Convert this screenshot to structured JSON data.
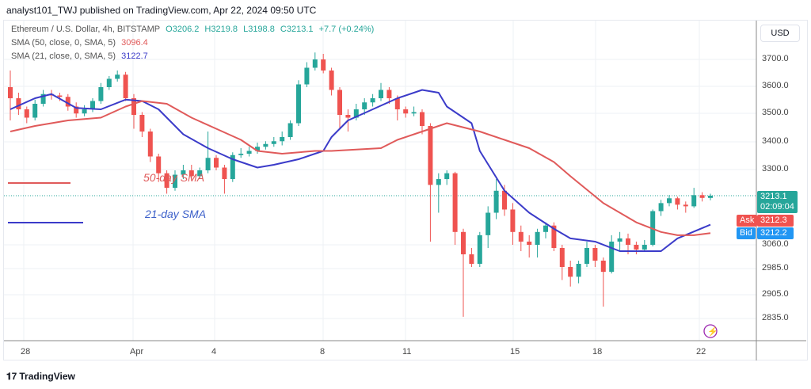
{
  "header": {
    "published": "analyst101_TWJ published on TradingView.com, Apr 22, 2024 09:50 UTC"
  },
  "legend": {
    "symbol": "Ethereum / U.S. Dollar, 4h, BITSTAMP",
    "open": "O3206.2",
    "high": "H3219.8",
    "low": "L3198.8",
    "close": "C3213.1",
    "change": "+7.7 (+0.24%)",
    "sma50_label": "SMA (50, close, 0, SMA, 5)",
    "sma50_value": "3096.4",
    "sma21_label": "SMA (21, close, 0, SMA, 5)",
    "sma21_value": "3122.7"
  },
  "currency": "USD",
  "price_labels": {
    "last": "3213.1",
    "countdown": "02:09:04",
    "ask_label": "Ask",
    "ask": "3212.3",
    "bid_label": "Bid",
    "bid": "3212.2"
  },
  "annotations": {
    "sma50": "50-day SMA",
    "sma21": "21-day SMA"
  },
  "logo": "TradingView",
  "colors": {
    "up": "#26a69a",
    "down": "#ef5350",
    "sma50": "#e05a5a",
    "sma21": "#3b3bc9",
    "ask": "#ef5350",
    "bid": "#2196f3",
    "last": "#26a69a",
    "alert": "#9c27b0"
  },
  "chart_data": {
    "type": "candlestick",
    "title": "Ethereum / U.S. Dollar, 4h, BITSTAMP",
    "y_ticks": [
      "3700.0",
      "3600.0",
      "3500.0",
      "3400.0",
      "3300.0",
      "3060.0",
      "2985.0",
      "2905.0",
      "2835.0"
    ],
    "x_ticks": [
      "28",
      "Apr",
      "4",
      "8",
      "11",
      "15",
      "18",
      "22"
    ],
    "grid": true,
    "candles_ohlc": [
      [
        3600,
        3660,
        3480,
        3560
      ],
      [
        3560,
        3580,
        3500,
        3520
      ],
      [
        3520,
        3530,
        3470,
        3490
      ],
      [
        3490,
        3555,
        3480,
        3540
      ],
      [
        3540,
        3590,
        3530,
        3575
      ],
      [
        3575,
        3590,
        3555,
        3570
      ],
      [
        3570,
        3580,
        3550,
        3565
      ],
      [
        3565,
        3575,
        3515,
        3530
      ],
      [
        3530,
        3545,
        3490,
        3505
      ],
      [
        3505,
        3535,
        3495,
        3520
      ],
      [
        3520,
        3560,
        3510,
        3550
      ],
      [
        3550,
        3615,
        3540,
        3600
      ],
      [
        3600,
        3640,
        3590,
        3630
      ],
      [
        3630,
        3660,
        3620,
        3645
      ],
      [
        3645,
        3655,
        3550,
        3560
      ],
      [
        3560,
        3575,
        3450,
        3500
      ],
      [
        3500,
        3510,
        3420,
        3440
      ],
      [
        3440,
        3450,
        3330,
        3350
      ],
      [
        3350,
        3360,
        3260,
        3290
      ],
      [
        3290,
        3300,
        3220,
        3240
      ],
      [
        3240,
        3300,
        3230,
        3285
      ],
      [
        3285,
        3320,
        3270,
        3300
      ],
      [
        3300,
        3320,
        3265,
        3280
      ],
      [
        3280,
        3310,
        3270,
        3300
      ],
      [
        3300,
        3440,
        3290,
        3345
      ],
      [
        3345,
        3355,
        3300,
        3310
      ],
      [
        3310,
        3320,
        3220,
        3270
      ],
      [
        3270,
        3365,
        3260,
        3355
      ],
      [
        3355,
        3380,
        3345,
        3360
      ],
      [
        3360,
        3385,
        3350,
        3370
      ],
      [
        3370,
        3400,
        3360,
        3385
      ],
      [
        3385,
        3405,
        3375,
        3395
      ],
      [
        3395,
        3420,
        3385,
        3405
      ],
      [
        3405,
        3440,
        3390,
        3420
      ],
      [
        3420,
        3480,
        3410,
        3470
      ],
      [
        3470,
        3625,
        3460,
        3610
      ],
      [
        3610,
        3690,
        3600,
        3670
      ],
      [
        3670,
        3725,
        3660,
        3700
      ],
      [
        3700,
        3720,
        3650,
        3660
      ],
      [
        3660,
        3670,
        3570,
        3590
      ],
      [
        3590,
        3600,
        3450,
        3500
      ],
      [
        3500,
        3520,
        3440,
        3490
      ],
      [
        3490,
        3540,
        3480,
        3520
      ],
      [
        3520,
        3560,
        3500,
        3545
      ],
      [
        3545,
        3575,
        3530,
        3560
      ],
      [
        3560,
        3615,
        3550,
        3590
      ],
      [
        3590,
        3600,
        3540,
        3560
      ],
      [
        3560,
        3570,
        3480,
        3520
      ],
      [
        3520,
        3530,
        3490,
        3505
      ],
      [
        3505,
        3530,
        3495,
        3510
      ],
      [
        3510,
        3520,
        3430,
        3460
      ],
      [
        3460,
        3470,
        3070,
        3250
      ],
      [
        3250,
        3290,
        3160,
        3270
      ],
      [
        3270,
        3300,
        3250,
        3290
      ],
      [
        3290,
        3295,
        3060,
        3100
      ],
      [
        3100,
        3110,
        2840,
        3030
      ],
      [
        3030,
        3050,
        2990,
        3000
      ],
      [
        3000,
        3100,
        2990,
        3090
      ],
      [
        3090,
        3180,
        3050,
        3160
      ],
      [
        3160,
        3270,
        3140,
        3230
      ],
      [
        3230,
        3250,
        3150,
        3170
      ],
      [
        3170,
        3190,
        3060,
        3100
      ],
      [
        3100,
        3120,
        3040,
        3070
      ],
      [
        3070,
        3090,
        3020,
        3060
      ],
      [
        3060,
        3110,
        3020,
        3100
      ],
      [
        3100,
        3130,
        3080,
        3120
      ],
      [
        3120,
        3130,
        3040,
        3050
      ],
      [
        3050,
        3060,
        2950,
        2990
      ],
      [
        2990,
        3010,
        2930,
        2960
      ],
      [
        2960,
        3010,
        2940,
        3000
      ],
      [
        3000,
        3070,
        2990,
        3050
      ],
      [
        3050,
        3060,
        2990,
        3010
      ],
      [
        3010,
        3020,
        2870,
        2975
      ],
      [
        2975,
        3090,
        2970,
        3070
      ],
      [
        3070,
        3100,
        3040,
        3080
      ],
      [
        3080,
        3095,
        3030,
        3060
      ],
      [
        3060,
        3070,
        3030,
        3045
      ],
      [
        3045,
        3075,
        3040,
        3060
      ],
      [
        3060,
        3170,
        3055,
        3165
      ],
      [
        3165,
        3200,
        3150,
        3190
      ],
      [
        3190,
        3215,
        3180,
        3205
      ],
      [
        3205,
        3210,
        3170,
        3185
      ],
      [
        3185,
        3195,
        3160,
        3180
      ],
      [
        3180,
        3240,
        3175,
        3215
      ],
      [
        3215,
        3225,
        3195,
        3206.2
      ],
      [
        3206.2,
        3219.8,
        3198.8,
        3213.1
      ]
    ],
    "series": [
      {
        "name": "SMA (21, close, 0, SMA, 5)",
        "points": [
          [
            1,
            3520
          ],
          [
            4,
            3560
          ],
          [
            6,
            3575
          ],
          [
            9,
            3525
          ],
          [
            12,
            3520
          ],
          [
            15,
            3555
          ],
          [
            17,
            3550
          ],
          [
            19,
            3520
          ],
          [
            22,
            3430
          ],
          [
            25,
            3380
          ],
          [
            28,
            3340
          ],
          [
            31,
            3310
          ],
          [
            33,
            3320
          ],
          [
            36,
            3340
          ],
          [
            39,
            3370
          ],
          [
            40,
            3420
          ],
          [
            42,
            3480
          ],
          [
            45,
            3520
          ],
          [
            48,
            3560
          ],
          [
            51,
            3590
          ],
          [
            53,
            3580
          ],
          [
            54,
            3530
          ],
          [
            57,
            3470
          ],
          [
            58,
            3370
          ],
          [
            61,
            3230
          ],
          [
            64,
            3160
          ],
          [
            67,
            3110
          ],
          [
            69,
            3080
          ],
          [
            72,
            3070
          ],
          [
            75,
            3040
          ],
          [
            77,
            3040
          ],
          [
            80,
            3040
          ],
          [
            82,
            3080
          ],
          [
            86,
            3122.7
          ]
        ]
      },
      {
        "name": "SMA (50, close, 0, SMA, 5)",
        "points": [
          [
            1,
            3440
          ],
          [
            4,
            3460
          ],
          [
            8,
            3480
          ],
          [
            12,
            3490
          ],
          [
            15,
            3530
          ],
          [
            17,
            3550
          ],
          [
            20,
            3540
          ],
          [
            23,
            3490
          ],
          [
            26,
            3450
          ],
          [
            29,
            3410
          ],
          [
            31,
            3370
          ],
          [
            34,
            3360
          ],
          [
            38,
            3370
          ],
          [
            40,
            3370
          ],
          [
            43,
            3375
          ],
          [
            46,
            3380
          ],
          [
            48,
            3410
          ],
          [
            51,
            3440
          ],
          [
            54,
            3470
          ],
          [
            58,
            3440
          ],
          [
            61,
            3410
          ],
          [
            64,
            3380
          ],
          [
            67,
            3330
          ],
          [
            69,
            3280
          ],
          [
            73,
            3190
          ],
          [
            77,
            3130
          ],
          [
            80,
            3100
          ],
          [
            82,
            3090
          ],
          [
            84,
            3090
          ],
          [
            86,
            3096.4
          ]
        ]
      }
    ]
  }
}
